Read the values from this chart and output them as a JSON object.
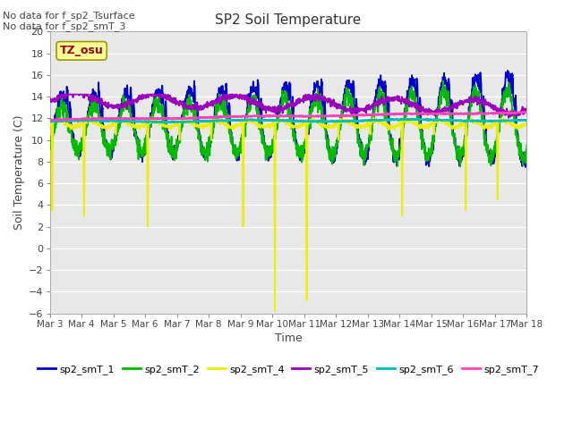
{
  "title": "SP2 Soil Temperature",
  "xlabel": "Time",
  "ylabel": "Soil Temperature (C)",
  "ylim": [
    -6,
    20
  ],
  "yticks": [
    -6,
    -4,
    -2,
    0,
    2,
    4,
    6,
    8,
    10,
    12,
    14,
    16,
    18,
    20
  ],
  "bg_color": "#e8e8e8",
  "annotations": [
    "No data for f_sp2_Tsurface",
    "No data for f_sp2_smT_3"
  ],
  "tz_label": "TZ_osu",
  "legend_labels": [
    "sp2_smT_1",
    "sp2_smT_2",
    "sp2_smT_4",
    "sp2_smT_5",
    "sp2_smT_6",
    "sp2_smT_7"
  ],
  "line_colors": [
    "#0000cc",
    "#00bb00",
    "#eeee00",
    "#9900bb",
    "#00bbbb",
    "#ff44bb"
  ],
  "x_tick_labels": [
    "Mar 3",
    "Mar 4",
    "Mar 5",
    "Mar 6",
    "Mar 7",
    "Mar 8",
    "Mar 9",
    "Mar 10",
    "Mar 11",
    "Mar 12",
    "Mar 13",
    "Mar 14",
    "Mar 15",
    "Mar 16",
    "Mar 17",
    "Mar 18"
  ]
}
